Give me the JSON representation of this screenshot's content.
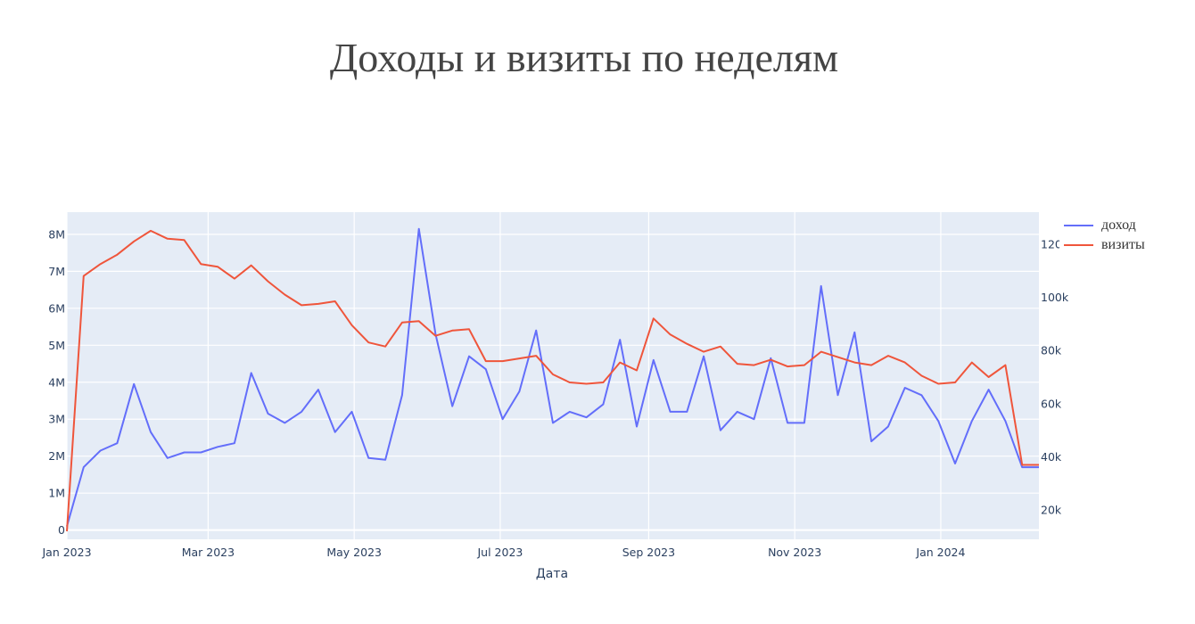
{
  "title": "Доходы и визиты по неделям",
  "chart_data": {
    "type": "line",
    "title": "Доходы и визиты по неделям",
    "xlabel": "Дата",
    "x_tick_labels": [
      "Jan 2023",
      "Mar 2023",
      "May 2023",
      "Jul 2023",
      "Sep 2023",
      "Nov 2023",
      "Jan 2024"
    ],
    "x": [
      "2023-01-01",
      "2023-01-08",
      "2023-01-15",
      "2023-01-22",
      "2023-01-29",
      "2023-02-05",
      "2023-02-12",
      "2023-02-19",
      "2023-02-26",
      "2023-03-05",
      "2023-03-12",
      "2023-03-19",
      "2023-03-26",
      "2023-04-02",
      "2023-04-09",
      "2023-04-16",
      "2023-04-23",
      "2023-04-30",
      "2023-05-07",
      "2023-05-14",
      "2023-05-21",
      "2023-05-28",
      "2023-06-04",
      "2023-06-11",
      "2023-06-18",
      "2023-06-25",
      "2023-07-02",
      "2023-07-09",
      "2023-07-16",
      "2023-07-23",
      "2023-07-30",
      "2023-08-06",
      "2023-08-13",
      "2023-08-20",
      "2023-08-27",
      "2023-09-03",
      "2023-09-10",
      "2023-09-17",
      "2023-09-24",
      "2023-10-01",
      "2023-10-08",
      "2023-10-15",
      "2023-10-22",
      "2023-10-29",
      "2023-11-05",
      "2023-11-12",
      "2023-11-19",
      "2023-11-26",
      "2023-12-03",
      "2023-12-10",
      "2023-12-17",
      "2023-12-24",
      "2023-12-31",
      "2024-01-07",
      "2024-01-14",
      "2024-01-21",
      "2024-01-28",
      "2024-02-04",
      "2024-02-11"
    ],
    "y_left": {
      "ylim": [
        -250000,
        8600000
      ],
      "ticks": [
        0,
        1000000,
        2000000,
        3000000,
        4000000,
        5000000,
        6000000,
        7000000,
        8000000
      ],
      "tick_labels": [
        "0",
        "1M",
        "2M",
        "3M",
        "4M",
        "5M",
        "6M",
        "7M",
        "8M"
      ]
    },
    "y_right": {
      "ylim": [
        9000,
        132000
      ],
      "ticks": [
        20000,
        40000,
        60000,
        80000,
        100000,
        120000
      ],
      "tick_labels": [
        "20k",
        "40k",
        "60k",
        "80k",
        "100k",
        "120k"
      ]
    },
    "legend_position": "top-right",
    "grid": true,
    "series": [
      {
        "name": "доход",
        "axis": "left",
        "color": "#636efa",
        "values": [
          100000,
          1700000,
          2150000,
          2350000,
          3950000,
          2650000,
          1950000,
          2100000,
          2100000,
          2250000,
          2350000,
          4250000,
          3150000,
          2900000,
          3200000,
          3800000,
          2650000,
          3200000,
          1950000,
          1900000,
          3650000,
          8150000,
          5300000,
          3350000,
          4700000,
          4350000,
          3000000,
          3750000,
          5400000,
          2900000,
          3200000,
          3050000,
          3400000,
          5150000,
          2800000,
          4600000,
          3200000,
          3200000,
          4700000,
          2700000,
          3200000,
          3000000,
          4650000,
          2900000,
          2900000,
          6600000,
          3650000,
          5350000,
          2400000,
          2800000,
          3850000,
          3650000,
          2950000,
          1800000,
          2950000,
          3800000,
          2950000,
          1700000,
          1700000
        ]
      },
      {
        "name": "визиты",
        "axis": "right",
        "color": "#ef553b",
        "values": [
          12000,
          108000,
          112500,
          116000,
          121000,
          125000,
          122000,
          121500,
          112500,
          111500,
          107000,
          112000,
          106000,
          101000,
          97000,
          97500,
          98500,
          89500,
          83000,
          81500,
          90500,
          91000,
          85500,
          87500,
          88000,
          76000,
          76000,
          77000,
          78000,
          71000,
          68000,
          67500,
          68000,
          75500,
          72500,
          92000,
          86000,
          82500,
          79500,
          81500,
          75000,
          74500,
          76500,
          74000,
          74500,
          79500,
          77500,
          75500,
          74500,
          78000,
          75500,
          70500,
          67500,
          68000,
          75500,
          70000,
          74500,
          37000,
          37000
        ]
      }
    ]
  }
}
